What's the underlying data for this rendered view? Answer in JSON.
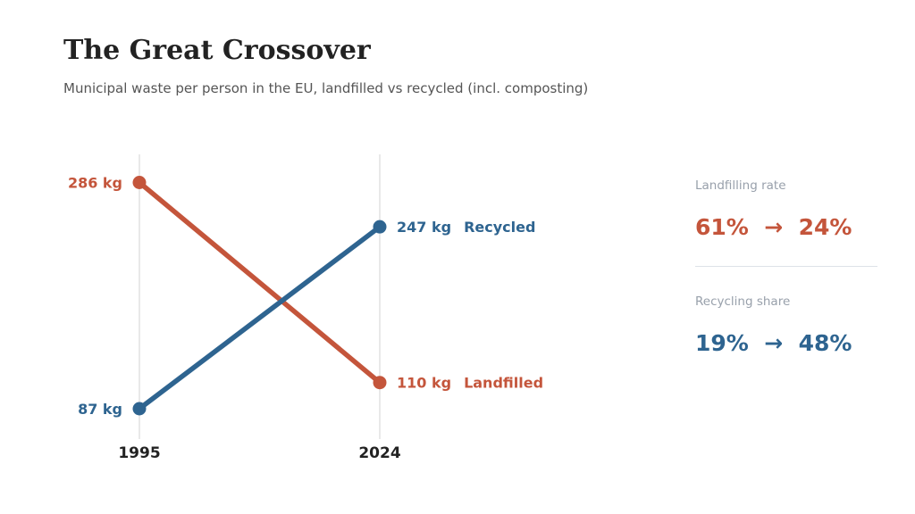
{
  "title": "The Great Crossover",
  "subtitle": "Municipal waste per person in the EU, landfilled vs recycled (incl. composting)",
  "chart_data": {
    "type": "line",
    "x": [
      "1995",
      "2024"
    ],
    "unit": "kg",
    "series": [
      {
        "name": "Landfilled",
        "values": [
          286,
          110
        ],
        "labels": [
          "286 kg",
          "110 kg"
        ],
        "color": "#c4553b"
      },
      {
        "name": "Recycled",
        "values": [
          87,
          247
        ],
        "labels": [
          "87 kg",
          "247 kg"
        ],
        "color": "#2e6490"
      }
    ],
    "ylim": [
      60,
      310
    ],
    "grid": "vertical lines at each year",
    "legend": "direct labels at line ends"
  },
  "stats": [
    {
      "label": "Landfilling rate",
      "from": "61%",
      "arrow": "→",
      "to": "24%",
      "color": "#c4553b"
    },
    {
      "label": "Recycling share",
      "from": "19%",
      "arrow": "→",
      "to": "48%",
      "color": "#2e6490"
    }
  ]
}
